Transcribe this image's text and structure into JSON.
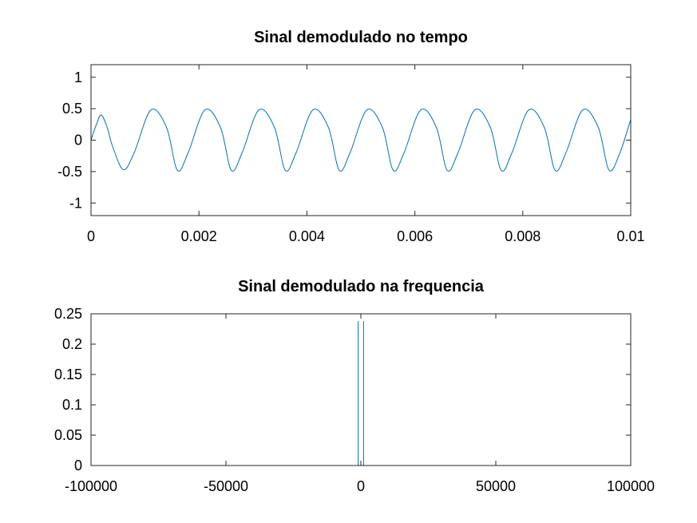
{
  "chart_data": [
    {
      "type": "line",
      "title": "Sinal demodulado no tempo",
      "xlabel": "",
      "ylabel": "",
      "xlim": [
        0,
        0.01
      ],
      "ylim": [
        -1.2,
        1.2
      ],
      "xticks": [
        0,
        0.002,
        0.004,
        0.006,
        0.008,
        0.01
      ],
      "xtick_labels": [
        "0",
        "0.002",
        "0.004",
        "0.006",
        "0.008",
        "0.01"
      ],
      "yticks": [
        -1,
        -0.5,
        0,
        0.5,
        1
      ],
      "ytick_labels": [
        "-1",
        "-0.5",
        "0",
        "0.5",
        "1"
      ],
      "grid": false,
      "series": [
        {
          "color": "#0072bd",
          "x": [
            0,
            0.0001,
            0.00019,
            0.0003,
            0.0004,
            0.0006,
            0.0008,
            0.00111,
            0.0014,
            0.0016,
            0.0018,
            0.00211,
            0.0024,
            0.0026,
            0.0028,
            0.00311,
            0.0034,
            0.0036,
            0.0038,
            0.00411,
            0.0044,
            0.0046,
            0.0048,
            0.00511,
            0.0054,
            0.0056,
            0.0058,
            0.00611,
            0.0064,
            0.0066,
            0.0068,
            0.00711,
            0.0074,
            0.0076,
            0.0078,
            0.00811,
            0.0084,
            0.0086,
            0.0088,
            0.00911,
            0.0094,
            0.0096,
            0.0098,
            0.01
          ],
          "y": [
            0,
            0.25,
            0.4,
            0.2,
            -0.1,
            -0.47,
            -0.2,
            0.48,
            0.2,
            -0.48,
            -0.2,
            0.48,
            0.2,
            -0.48,
            -0.2,
            0.48,
            0.2,
            -0.48,
            -0.2,
            0.48,
            0.2,
            -0.48,
            -0.2,
            0.48,
            0.2,
            -0.48,
            -0.2,
            0.48,
            0.2,
            -0.48,
            -0.2,
            0.48,
            0.2,
            -0.48,
            -0.2,
            0.48,
            0.2,
            -0.48,
            -0.2,
            0.48,
            0.2,
            -0.48,
            -0.2,
            0.33
          ]
        }
      ]
    },
    {
      "type": "line",
      "title": "Sinal demodulado na frequencia",
      "xlabel": "",
      "ylabel": "",
      "xlim": [
        -100000,
        100000
      ],
      "ylim": [
        0,
        0.25
      ],
      "xticks": [
        -100000,
        -50000,
        0,
        50000,
        100000
      ],
      "xtick_labels": [
        "-100000",
        "-50000",
        "0",
        "50000",
        "100000"
      ],
      "yticks": [
        0,
        0.05,
        0.1,
        0.15,
        0.2,
        0.25
      ],
      "ytick_labels": [
        "0",
        "0.05",
        "0.1",
        "0.15",
        "0.2",
        "0.25"
      ],
      "grid": false,
      "series": [
        {
          "color": "#0072bd",
          "x": [
            -100000,
            -1000,
            -1000,
            -1000,
            1000,
            1000,
            1000,
            100000
          ],
          "y": [
            0,
            0,
            0.238,
            0,
            0,
            0.238,
            0,
            0
          ]
        }
      ]
    }
  ]
}
